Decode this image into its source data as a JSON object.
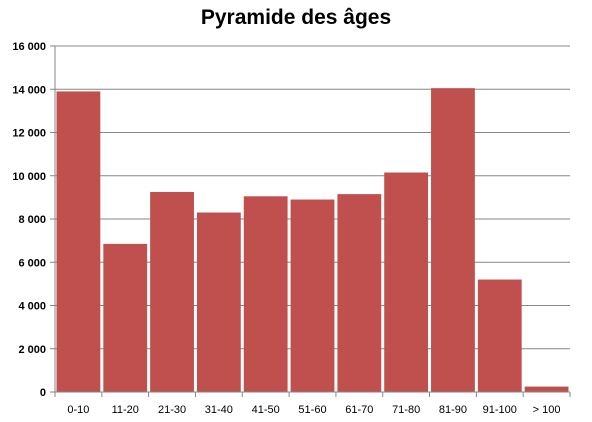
{
  "chart_data": {
    "type": "bar",
    "title": "Pyramide des âges",
    "xlabel": "",
    "ylabel": "",
    "categories": [
      "0-10",
      "11-20",
      "21-30",
      "31-40",
      "41-50",
      "51-60",
      "61-70",
      "71-80",
      "81-90",
      "91-100",
      "> 100"
    ],
    "values": [
      13900,
      6850,
      9250,
      8300,
      9050,
      8900,
      9150,
      10150,
      14050,
      5200,
      250
    ],
    "ylim": [
      0,
      16000
    ],
    "yticks": [
      "0",
      "2 000",
      "4 000",
      "6 000",
      "8 000",
      "10 000",
      "12 000",
      "14 000",
      "16 000"
    ],
    "ytick_values": [
      0,
      2000,
      4000,
      6000,
      8000,
      10000,
      12000,
      14000,
      16000
    ],
    "grid": true,
    "legend": "none",
    "bar_color": "#c0504d",
    "grid_color": "#868686"
  }
}
